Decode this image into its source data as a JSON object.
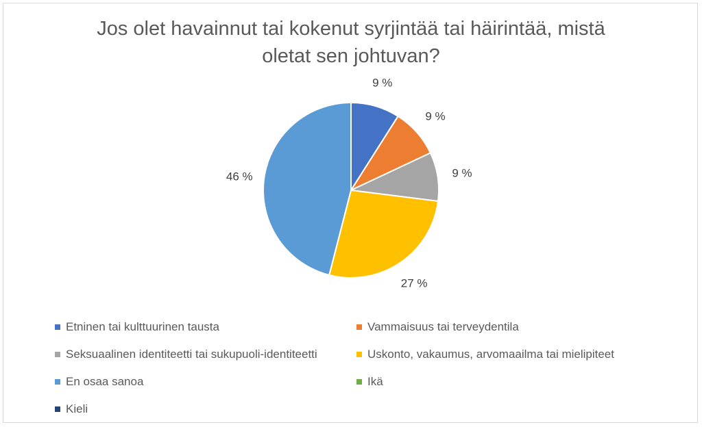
{
  "chart_data": {
    "type": "pie",
    "title": "Jos olet havainnut tai kokenut syrjintää tai häirintää, mistä\noletat sen johtuvan?",
    "series": [
      {
        "name": "Etninen tai kulttuurinen tausta",
        "value": 9,
        "label": "9 %",
        "color": "#4472c4"
      },
      {
        "name": "Vammaisuus tai terveydentila",
        "value": 9,
        "label": "9 %",
        "color": "#ed7d31"
      },
      {
        "name": "Seksuaalinen identiteetti tai sukupuoli-identiteetti",
        "value": 9,
        "label": "9 %",
        "color": "#a5a5a5"
      },
      {
        "name": "Uskonto, vakaumus, arvomaailma tai mielipiteet",
        "value": 27,
        "label": "27 %",
        "color": "#ffc000"
      },
      {
        "name": "En osaa sanoa",
        "value": 46,
        "label": "46 %",
        "color": "#5b9bd5"
      },
      {
        "name": "Ikä",
        "value": 0,
        "label": "",
        "color": "#70ad47"
      },
      {
        "name": "Kieli",
        "value": 0,
        "label": "",
        "color": "#264478"
      }
    ],
    "legend_position": "bottom"
  }
}
